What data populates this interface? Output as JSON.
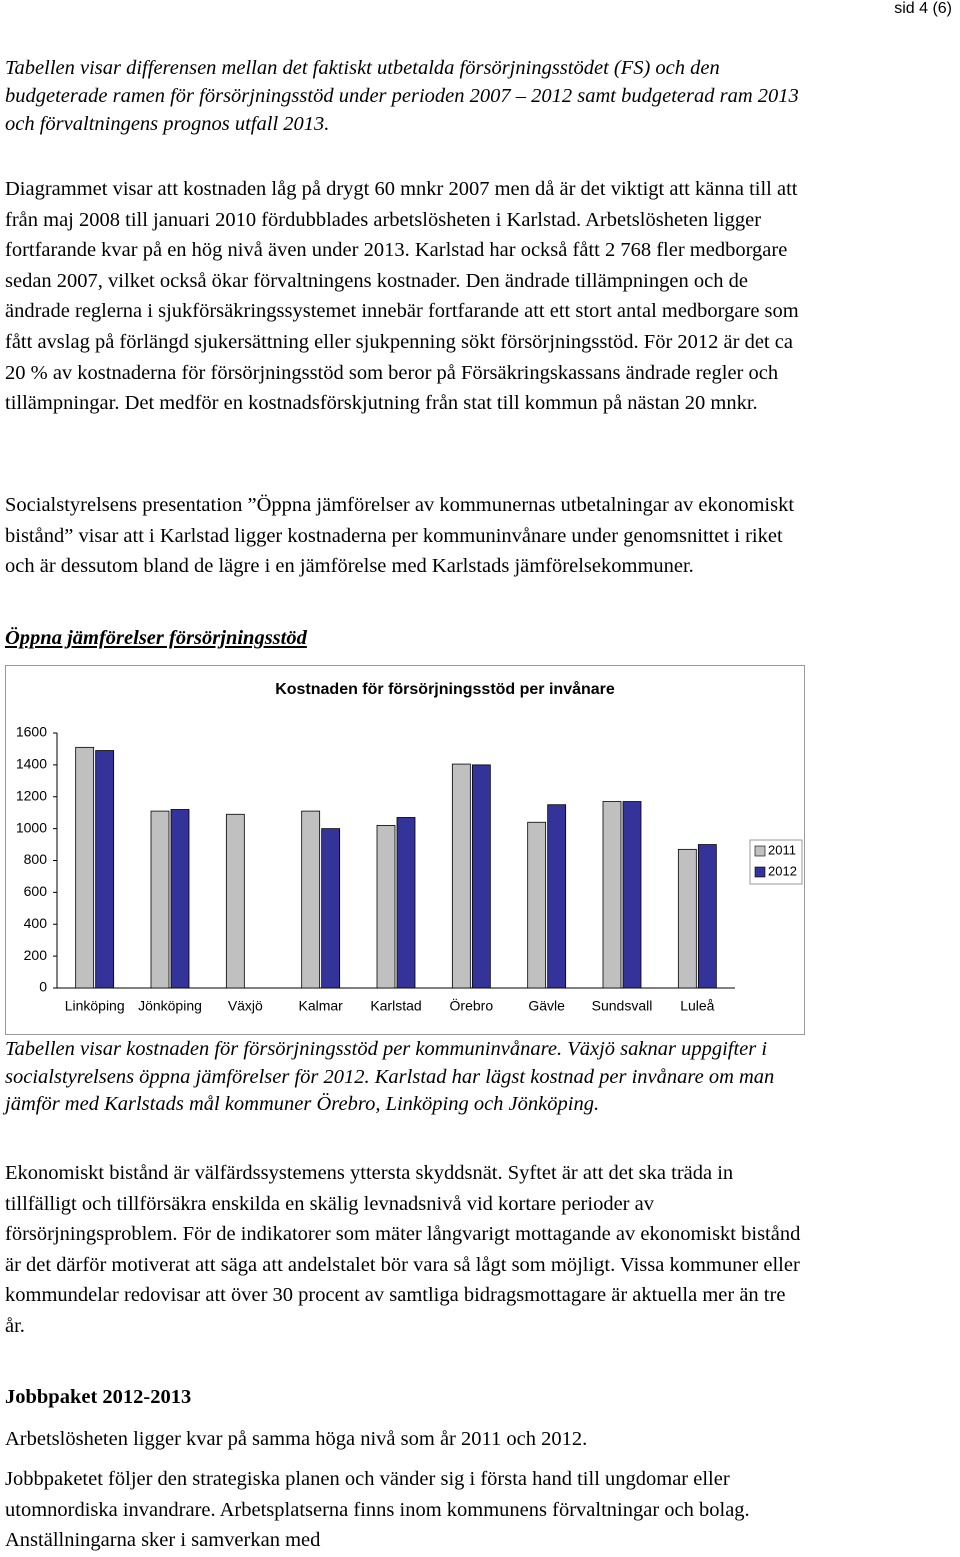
{
  "header": {
    "page": "sid 4 (6)"
  },
  "intro": "Tabellen visar differensen mellan det faktiskt utbetalda försörjningsstödet (FS) och den budgeterade ramen för försörjningsstöd under perioden 2007 – 2012 samt budgeterad ram 2013 och förvaltningens prognos utfall 2013.",
  "paragraphs": [
    "Diagrammet visar att kostnaden låg på drygt 60 mnkr 2007 men då är det viktigt att känna till att från maj 2008 till januari 2010 fördubblades arbetslösheten i Karlstad. Arbetslösheten ligger fortfarande kvar på en hög nivå även under 2013. Karlstad har också fått 2 768 fler medborgare sedan 2007, vilket också ökar förvaltningens kostnader. Den ändrade tillämpningen och de ändrade reglerna i sjukförsäkringssystemet innebär fortfarande att ett stort antal medborgare som fått avslag på förlängd sjukersättning eller sjukpenning sökt försörjningsstöd. För 2012 är det ca 20 % av kostnaderna för försörjningsstöd som beror på Försäkringskassans ändrade regler och tillämpningar. Det medför en kostnadsförskjutning från stat till kommun på nästan 20 mnkr.",
    "Socialstyrelsens presentation ”Öppna jämförelser av kommunernas utbetalningar av ekonomiskt bistånd” visar att i Karlstad ligger kostnaderna per kommuninvånare under genomsnittet i riket och är dessutom bland de lägre i en jämförelse med Karlstads jämförelsekommuner."
  ],
  "section1": {
    "heading": "Öppna jämförelser försörjningsstöd",
    "caption": "Tabellen visar kostnaden för försörjningsstöd per kommuninvånare. Växjö saknar uppgifter i socialstyrelsens öppna jämförelser för 2012. Karlstad har lägst kostnad per invånare om man jämför med Karlstads mål kommuner Örebro, Linköping och Jönköping.",
    "text": "Ekonomiskt bistånd är välfärdssystemens yttersta skyddsnät. Syftet är att det ska träda in tillfälligt och tillförsäkra enskilda en skälig levnadsnivå vid kortare perioder av försörjningsproblem. För de indikatorer som mäter långvarigt mottagande av ekonomiskt bistånd är det därför motiverat att säga att andelstalet bör vara så lågt som möjligt. Vissa kommuner eller kommundelar redovisar att över 30 procent av samtliga bidragsmottagare är aktuella mer än tre år."
  },
  "section2": {
    "heading": "Jobbpaket 2012-2013",
    "paragraphs": [
      "Arbetslösheten ligger kvar på samma höga nivå som år 2011 och 2012.",
      "Jobbpaketet följer den strategiska planen och vänder sig i första hand till ungdomar eller utomnordiska invandrare. Arbetsplatserna finns inom kommunens förvaltningar och bolag. Anställningarna sker i samverkan med"
    ]
  },
  "chart_data": {
    "type": "bar",
    "title": "Kostnaden för försörjningsstöd per invånare",
    "categories": [
      "Linköping",
      "Jönköping",
      "Växjö",
      "Kalmar",
      "Karlstad",
      "Örebro",
      "Gävle",
      "Sundsvall",
      "Luleå"
    ],
    "series": [
      {
        "name": "2011",
        "color": "#c0c0c0",
        "values": [
          1510,
          1110,
          1090,
          1110,
          1020,
          1405,
          1040,
          1170,
          870
        ]
      },
      {
        "name": "2012",
        "color": "#333399",
        "values": [
          1490,
          1120,
          null,
          1000,
          1070,
          1400,
          1150,
          1170,
          900
        ]
      }
    ],
    "ylim": [
      0,
      1600
    ],
    "yticks": [
      0,
      200,
      400,
      600,
      800,
      1000,
      1200,
      1400,
      1600
    ],
    "grid": false,
    "legend": "right"
  }
}
